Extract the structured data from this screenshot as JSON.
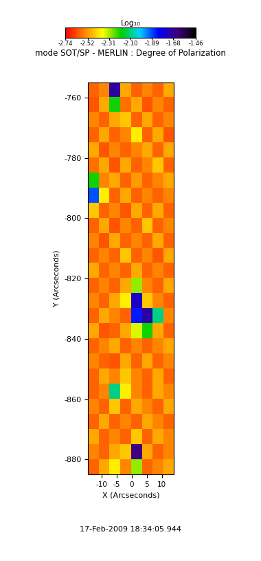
{
  "chart_data": {
    "type": "heatmap",
    "title": "mode SOT/SP - MERLIN : Degree of Polarization",
    "x_label": "X (Arcseconds)",
    "y_label": "Y (Arcseconds)",
    "footer": "17-Feb-2009 18:34:05.944",
    "xlim": [
      -14.5,
      14
    ],
    "ylim": [
      -885,
      -755
    ],
    "xticks": [
      -10,
      -5,
      0,
      5,
      10
    ],
    "yticks": [
      -880,
      -860,
      -840,
      -820,
      -800,
      -780,
      -760
    ],
    "colorbar": {
      "label": "Log₁₀",
      "range": [
        -2.74,
        -1.46
      ],
      "ticks": [
        -2.74,
        -2.52,
        -2.31,
        {
          "value": -2.1,
          "label": "-2.10"
        },
        -1.89,
        -1.68,
        -1.46
      ]
    },
    "cells": [
      [
        -2.6,
        -2.55,
        -1.7,
        -2.5,
        -2.6,
        -2.55,
        -2.6,
        -2.5
      ],
      [
        -2.62,
        -2.5,
        -2.2,
        -2.58,
        -2.5,
        -2.62,
        -2.55,
        -2.6
      ],
      [
        -2.55,
        -2.6,
        -2.5,
        -2.45,
        -2.6,
        -2.5,
        -2.6,
        -2.55
      ],
      [
        -2.6,
        -2.5,
        -2.6,
        -2.55,
        -2.4,
        -2.6,
        -2.5,
        -2.62
      ],
      [
        -2.5,
        -2.62,
        -2.55,
        -2.6,
        -2.55,
        -2.5,
        -2.6,
        -2.5
      ],
      [
        -2.58,
        -2.5,
        -2.62,
        -2.5,
        -2.6,
        -2.55,
        -2.45,
        -2.6
      ],
      [
        -2.2,
        -2.55,
        -2.5,
        -2.6,
        -2.52,
        -2.6,
        -2.55,
        -2.5
      ],
      [
        -1.9,
        -2.4,
        -2.6,
        -2.5,
        -2.6,
        -2.55,
        -2.6,
        -2.55
      ],
      [
        -2.45,
        -2.6,
        -2.55,
        -2.62,
        -2.5,
        -2.6,
        -2.5,
        -2.6
      ],
      [
        -2.6,
        -2.5,
        -2.62,
        -2.55,
        -2.6,
        -2.45,
        -2.6,
        -2.55
      ],
      [
        -2.55,
        -2.62,
        -2.5,
        -2.6,
        -2.55,
        -2.6,
        -2.5,
        -2.6
      ],
      [
        -2.6,
        -2.55,
        -2.6,
        -2.45,
        -2.6,
        -2.55,
        -2.62,
        -2.5
      ],
      [
        -2.5,
        -2.6,
        -2.55,
        -2.6,
        -2.5,
        -2.6,
        -2.55,
        -2.6
      ],
      [
        -2.6,
        -2.55,
        -2.6,
        -2.5,
        -2.3,
        -2.55,
        -2.6,
        -2.5
      ],
      [
        -2.55,
        -2.6,
        -2.5,
        -2.4,
        -1.75,
        -2.45,
        -2.55,
        -2.6
      ],
      [
        -2.6,
        -2.5,
        -2.55,
        -2.6,
        -1.85,
        -1.7,
        -2.1,
        -2.55
      ],
      [
        -2.5,
        -2.62,
        -2.6,
        -2.5,
        -2.35,
        -2.2,
        -2.5,
        -2.6
      ],
      [
        -2.6,
        -2.55,
        -2.5,
        -2.6,
        -2.55,
        -2.6,
        -2.55,
        -2.5
      ],
      [
        -2.55,
        -2.6,
        -2.62,
        -2.5,
        -2.6,
        -2.5,
        -2.6,
        -2.55
      ],
      [
        -2.6,
        -2.5,
        -2.55,
        -2.45,
        -2.55,
        -2.6,
        -2.5,
        -2.6
      ],
      [
        -2.6,
        -2.55,
        -2.1,
        -2.4,
        -2.55,
        -2.6,
        -2.5,
        -2.55
      ],
      [
        -2.55,
        -2.6,
        -2.45,
        -2.6,
        -2.5,
        -2.55,
        -2.6,
        -2.5
      ],
      [
        -2.6,
        -2.5,
        -2.6,
        -2.55,
        -2.6,
        -2.5,
        -2.55,
        -2.6
      ],
      [
        -2.5,
        -2.6,
        -2.55,
        -2.6,
        -2.45,
        -2.6,
        -2.5,
        -2.55
      ],
      [
        -2.55,
        -2.6,
        -2.5,
        -2.45,
        -1.65,
        -2.5,
        -2.6,
        -2.55
      ],
      [
        -2.6,
        -2.5,
        -2.4,
        -2.55,
        -2.3,
        -2.6,
        -2.55,
        -2.5
      ]
    ]
  }
}
